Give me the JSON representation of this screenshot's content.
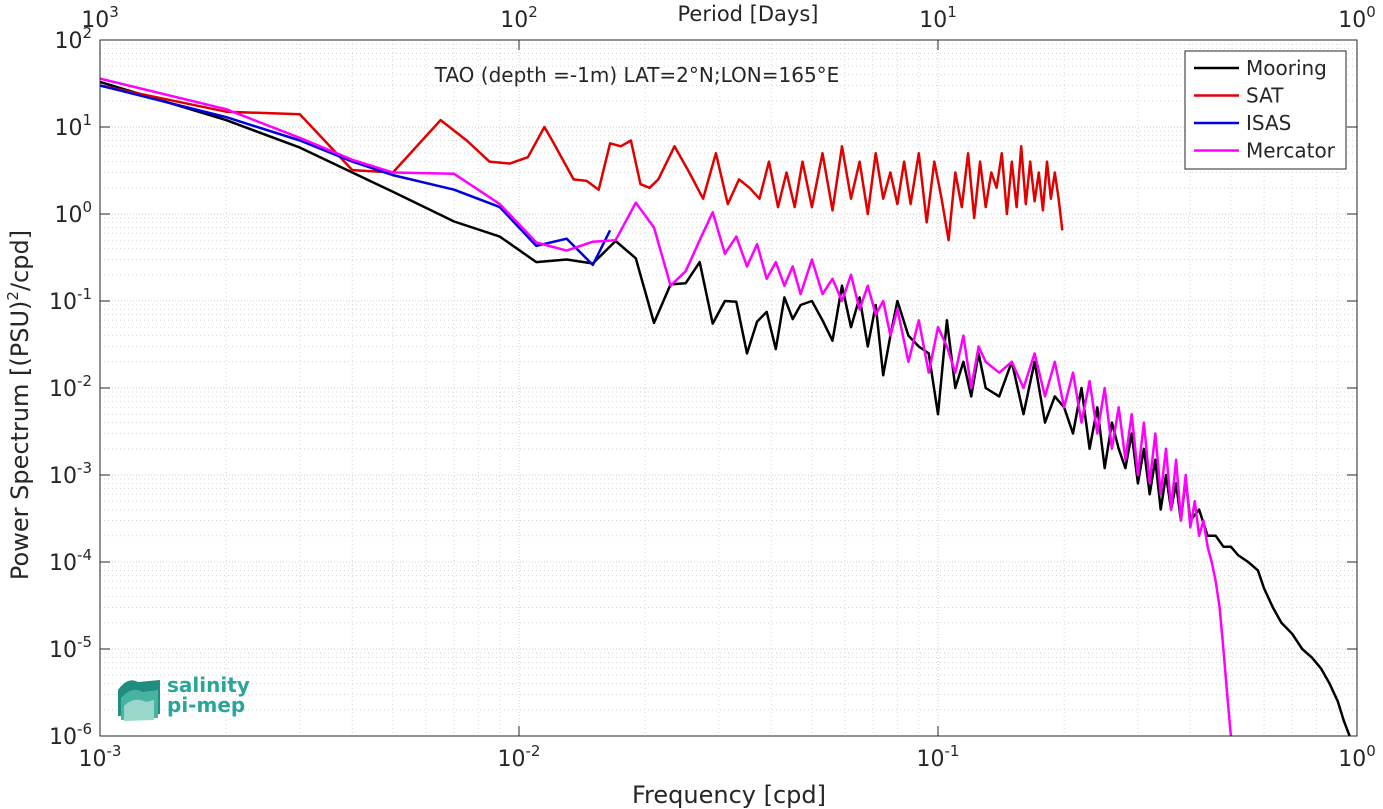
{
  "chart_data": {
    "type": "line",
    "title": "TAO (depth =-1m) LAT=2°N;LON=165°E",
    "xlabel": "Frequency [cpd]",
    "ylabel_main": "Power Spectrum [(PSU)",
    "ylabel_sup": "2",
    "ylabel_tail": "/cpd]",
    "top_xlabel": "Period [Days]",
    "x_scale": "log",
    "y_scale": "log",
    "xlim": [
      0.001,
      1
    ],
    "ylim": [
      1e-06,
      100
    ],
    "grid": true,
    "legend_position": "top-right",
    "x_ticks": [
      {
        "value": 0.001,
        "base": "10",
        "exp": "-3"
      },
      {
        "value": 0.01,
        "base": "10",
        "exp": "-2"
      },
      {
        "value": 0.1,
        "base": "10",
        "exp": "-1"
      },
      {
        "value": 1,
        "base": "10",
        "exp": "0"
      }
    ],
    "top_ticks": [
      {
        "value": 0.001,
        "base": "10",
        "exp": "3"
      },
      {
        "value": 0.01,
        "base": "10",
        "exp": "2"
      },
      {
        "value": 0.1,
        "base": "10",
        "exp": "1"
      },
      {
        "value": 1,
        "base": "10",
        "exp": "0"
      }
    ],
    "y_ticks": [
      {
        "value": 1e-06,
        "base": "10",
        "exp": "-6"
      },
      {
        "value": 1e-05,
        "base": "10",
        "exp": "-5"
      },
      {
        "value": 0.0001,
        "base": "10",
        "exp": "-4"
      },
      {
        "value": 0.001,
        "base": "10",
        "exp": "-3"
      },
      {
        "value": 0.01,
        "base": "10",
        "exp": "-2"
      },
      {
        "value": 0.1,
        "base": "10",
        "exp": "-1"
      },
      {
        "value": 1,
        "base": "10",
        "exp": "0"
      },
      {
        "value": 10,
        "base": "10",
        "exp": "1"
      },
      {
        "value": 100,
        "base": "10",
        "exp": "2"
      }
    ],
    "series": [
      {
        "name": "Mooring",
        "color": "#000000",
        "x": [
          0.001,
          0.002,
          0.003,
          0.004,
          0.005,
          0.007,
          0.009,
          0.011,
          0.013,
          0.015,
          0.017,
          0.019,
          0.021,
          0.023,
          0.025,
          0.027,
          0.029,
          0.031,
          0.033,
          0.035,
          0.037,
          0.039,
          0.041,
          0.043,
          0.045,
          0.047,
          0.05,
          0.053,
          0.056,
          0.059,
          0.062,
          0.065,
          0.068,
          0.071,
          0.074,
          0.077,
          0.08,
          0.085,
          0.09,
          0.095,
          0.1,
          0.105,
          0.11,
          0.115,
          0.12,
          0.125,
          0.13,
          0.14,
          0.15,
          0.16,
          0.17,
          0.18,
          0.19,
          0.2,
          0.21,
          0.22,
          0.23,
          0.24,
          0.25,
          0.26,
          0.27,
          0.28,
          0.29,
          0.3,
          0.31,
          0.32,
          0.33,
          0.34,
          0.35,
          0.36,
          0.37,
          0.38,
          0.39,
          0.4,
          0.42,
          0.44,
          0.46,
          0.48,
          0.5,
          0.52,
          0.55,
          0.58,
          0.6,
          0.63,
          0.66,
          0.7,
          0.74,
          0.78,
          0.82,
          0.86,
          0.9,
          0.93,
          0.96
        ],
        "y": [
          33,
          12,
          5.8,
          3.0,
          1.8,
          0.82,
          0.55,
          0.28,
          0.3,
          0.27,
          0.49,
          0.31,
          0.056,
          0.155,
          0.16,
          0.28,
          0.055,
          0.1,
          0.098,
          0.025,
          0.058,
          0.075,
          0.028,
          0.11,
          0.062,
          0.09,
          0.1,
          0.06,
          0.035,
          0.15,
          0.05,
          0.11,
          0.03,
          0.09,
          0.014,
          0.04,
          0.1,
          0.04,
          0.03,
          0.025,
          0.005,
          0.06,
          0.01,
          0.02,
          0.008,
          0.025,
          0.01,
          0.008,
          0.02,
          0.005,
          0.02,
          0.004,
          0.008,
          0.006,
          0.003,
          0.01,
          0.002,
          0.006,
          0.0012,
          0.004,
          0.002,
          0.0012,
          0.003,
          0.0008,
          0.002,
          0.0006,
          0.0015,
          0.0004,
          0.001,
          0.0004,
          0.0008,
          0.0003,
          0.0009,
          0.0003,
          0.0004,
          0.0002,
          0.0002,
          0.00015,
          0.00015,
          0.00012,
          0.0001,
          8e-05,
          5e-05,
          3e-05,
          2e-05,
          1.5e-05,
          1e-05,
          8e-06,
          6e-06,
          4e-06,
          2.5e-06,
          1.5e-06,
          1e-06
        ]
      },
      {
        "name": "SAT",
        "color": "#e00000",
        "x": [
          0.001,
          0.002,
          0.003,
          0.004,
          0.005,
          0.0065,
          0.0075,
          0.0085,
          0.0095,
          0.0105,
          0.0115,
          0.012,
          0.0135,
          0.0145,
          0.0155,
          0.0165,
          0.0175,
          0.0185,
          0.0195,
          0.0205,
          0.0215,
          0.0235,
          0.0255,
          0.0275,
          0.0295,
          0.0315,
          0.0335,
          0.0355,
          0.0375,
          0.0395,
          0.0415,
          0.0435,
          0.0455,
          0.0475,
          0.05,
          0.053,
          0.056,
          0.059,
          0.062,
          0.065,
          0.068,
          0.071,
          0.074,
          0.077,
          0.08,
          0.083,
          0.086,
          0.09,
          0.094,
          0.098,
          0.102,
          0.106,
          0.11,
          0.114,
          0.118,
          0.122,
          0.126,
          0.13,
          0.134,
          0.138,
          0.142,
          0.146,
          0.15,
          0.154,
          0.158,
          0.162,
          0.166,
          0.17,
          0.174,
          0.178,
          0.182,
          0.186,
          0.19,
          0.194,
          0.198
        ],
        "y": [
          30,
          15,
          14,
          3.2,
          3.0,
          12,
          7,
          4,
          3.8,
          4.5,
          10,
          7,
          2.5,
          2.4,
          1.9,
          6.5,
          6,
          7,
          2.2,
          2,
          2.5,
          6,
          3,
          1.5,
          5,
          1.3,
          2.5,
          2,
          1.5,
          4,
          1.2,
          3,
          1.2,
          4,
          1.2,
          5,
          1.1,
          6,
          1.5,
          4,
          1,
          5,
          1.5,
          3,
          1.3,
          4,
          1.3,
          5,
          0.8,
          4,
          1.5,
          0.5,
          3,
          1.2,
          5,
          0.9,
          4,
          1.2,
          3,
          2,
          5,
          1,
          4,
          1.2,
          6,
          1.3,
          4,
          1.4,
          3,
          1.1,
          4,
          1.5,
          3,
          1.5,
          0.65
        ]
      },
      {
        "name": "ISAS",
        "color": "#0000e0",
        "x": [
          0.001,
          0.002,
          0.003,
          0.004,
          0.005,
          0.007,
          0.009,
          0.011,
          0.013,
          0.015,
          0.0165
        ],
        "y": [
          30,
          13,
          7,
          4,
          2.8,
          1.9,
          1.2,
          0.43,
          0.52,
          0.26,
          0.65
        ]
      },
      {
        "name": "Mercator",
        "color": "#ff00ff",
        "x": [
          0.001,
          0.002,
          0.003,
          0.004,
          0.005,
          0.007,
          0.009,
          0.011,
          0.013,
          0.015,
          0.017,
          0.019,
          0.021,
          0.023,
          0.025,
          0.027,
          0.029,
          0.031,
          0.033,
          0.035,
          0.037,
          0.039,
          0.041,
          0.043,
          0.045,
          0.047,
          0.05,
          0.053,
          0.056,
          0.059,
          0.062,
          0.065,
          0.068,
          0.071,
          0.074,
          0.077,
          0.08,
          0.085,
          0.09,
          0.095,
          0.1,
          0.105,
          0.11,
          0.115,
          0.12,
          0.125,
          0.13,
          0.14,
          0.15,
          0.16,
          0.17,
          0.18,
          0.19,
          0.2,
          0.21,
          0.22,
          0.23,
          0.24,
          0.25,
          0.26,
          0.27,
          0.28,
          0.29,
          0.3,
          0.31,
          0.32,
          0.33,
          0.34,
          0.35,
          0.36,
          0.37,
          0.38,
          0.39,
          0.4,
          0.41,
          0.42,
          0.43,
          0.44,
          0.45,
          0.46,
          0.47,
          0.48,
          0.49,
          0.5
        ],
        "y": [
          36,
          16,
          7.5,
          4.2,
          3,
          2.9,
          1.3,
          0.47,
          0.38,
          0.48,
          0.5,
          1.35,
          0.7,
          0.15,
          0.22,
          0.5,
          1.05,
          0.35,
          0.55,
          0.25,
          0.45,
          0.18,
          0.28,
          0.15,
          0.25,
          0.12,
          0.3,
          0.12,
          0.18,
          0.1,
          0.2,
          0.08,
          0.15,
          0.07,
          0.1,
          0.04,
          0.08,
          0.02,
          0.06,
          0.015,
          0.05,
          0.03,
          0.015,
          0.04,
          0.01,
          0.03,
          0.02,
          0.015,
          0.02,
          0.01,
          0.025,
          0.008,
          0.02,
          0.006,
          0.015,
          0.004,
          0.012,
          0.003,
          0.01,
          0.002,
          0.006,
          0.0015,
          0.005,
          0.001,
          0.004,
          0.0008,
          0.003,
          0.0006,
          0.002,
          0.0004,
          0.0015,
          0.0003,
          0.001,
          0.00025,
          0.0005,
          0.0002,
          0.0003,
          0.00015,
          0.0001,
          6e-05,
          3e-05,
          1e-05,
          3e-06,
          8e-07
        ]
      }
    ]
  },
  "logo": {
    "line1": "salinity",
    "line2": "pi-mep",
    "color": "#2aa59a"
  }
}
